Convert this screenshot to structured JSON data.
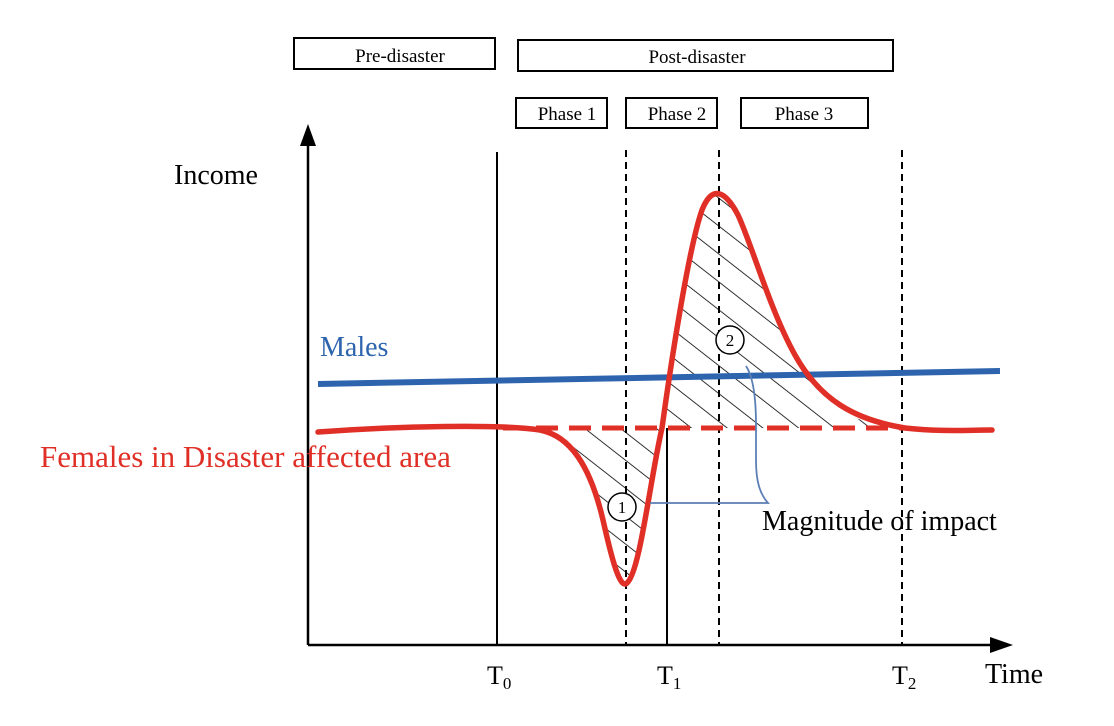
{
  "periods": {
    "pre": "Pre-disaster",
    "post": "Post-disaster"
  },
  "phases": [
    "Phase 1",
    "Phase 2",
    "Phase 3"
  ],
  "axes": {
    "y_label": "Income",
    "x_label": "Time"
  },
  "ticks": [
    {
      "main": "T",
      "sub": "0"
    },
    {
      "main": "T",
      "sub": "1"
    },
    {
      "main": "T",
      "sub": "2"
    }
  ],
  "series": {
    "males": "Males",
    "females": "Females in Disaster affected area"
  },
  "annotations": {
    "marker_1": "1",
    "marker_2": "2",
    "magnitude": "Magnitude of impact"
  },
  "colors": {
    "males": "#2e64ae",
    "females": "#e02f26",
    "bracket": "#5b7fb5"
  }
}
